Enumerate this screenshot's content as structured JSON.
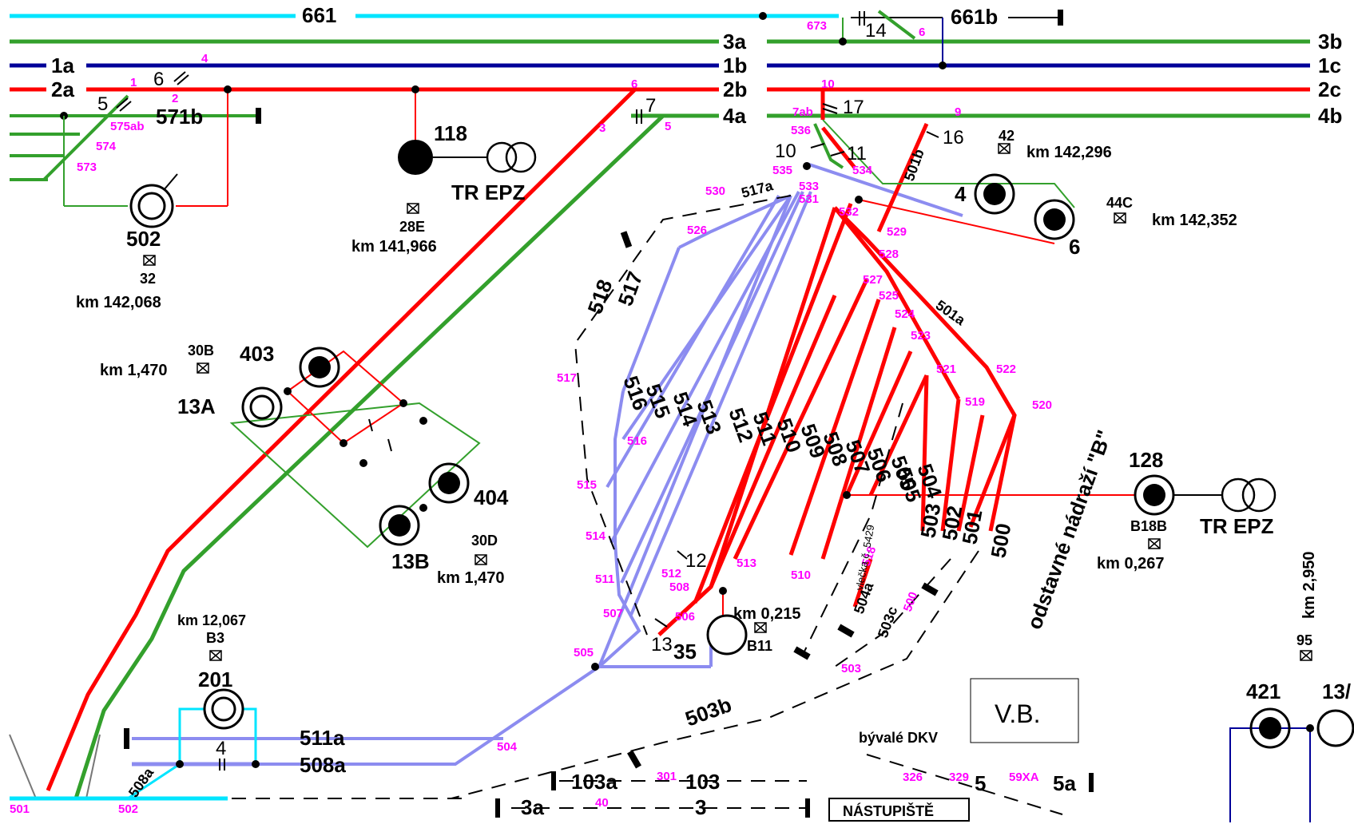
{
  "colors": {
    "red": "#ff0000",
    "green": "#33a02c",
    "blue": "#000099",
    "cyan": "#00e5ff",
    "lavender": "#8c8cf0",
    "magenta": "#ff00ff",
    "black": "#000000"
  },
  "tracks": {
    "t661": "661",
    "t661b": "661b",
    "t3a": "3a",
    "t3b": "3b",
    "t1a": "1a",
    "t1b": "1b",
    "t1c": "1c",
    "t2a": "2a",
    "t2b": "2b",
    "t2c": "2c",
    "t4a": "4a",
    "t4b": "4b",
    "t571b": "571b",
    "t511a": "511a",
    "t508a": "508a",
    "t103a": "103a",
    "t103": "103",
    "t3a_low": "3a",
    "t3": "3",
    "t5": "5",
    "t5a": "5a",
    "t503b": "503b",
    "t518": "518",
    "t517": "517",
    "t505": "505",
    "t505_vyt": "500"
  },
  "yard_tracks": [
    "516",
    "515",
    "514",
    "513",
    "512",
    "511",
    "510",
    "509",
    "508",
    "507",
    "506",
    "505",
    "504",
    "503",
    "502",
    "501",
    "500"
  ],
  "switch_numbers": {
    "s14": "14",
    "s6": "6",
    "s5": "5",
    "s7": "7",
    "s17": "17",
    "s10": "10",
    "s11": "11",
    "s16": "16",
    "s12": "12",
    "s13": "13",
    "s4": "4"
  },
  "point_labels": {
    "m673": "673",
    "m6s": "6",
    "m4": "4",
    "m1": "1",
    "m2": "2",
    "m575ab": "575ab",
    "m574": "574",
    "m573": "573",
    "m6": "6",
    "m3": "3",
    "m5": "5",
    "m10": "10",
    "m7ab": "7ab",
    "m9": "9",
    "m536": "536",
    "m535": "535",
    "m534": "534",
    "m533": "533",
    "m531": "531",
    "m530": "530",
    "m501b": "501b",
    "m517a": "517a",
    "m532": "532",
    "m529": "529",
    "m528": "528",
    "m527": "527",
    "m526": "526",
    "m525": "525",
    "m524": "524",
    "m523": "523",
    "m501a": "501a",
    "m521": "521",
    "m522": "522",
    "m519": "519",
    "m520": "520",
    "m517": "517",
    "m516": "516",
    "m515": "515",
    "m514": "514",
    "m511": "511",
    "m507": "507",
    "m505": "505",
    "m504": "504",
    "m512": "512",
    "m508": "508",
    "m506": "506",
    "m513": "513",
    "m510": "510",
    "m518": "518",
    "m504a": "504a",
    "m503c": "503c",
    "m500": "500",
    "m503": "503",
    "m501": "501",
    "m502": "502",
    "m508a": "508a",
    "m301": "301",
    "m40": "40",
    "m326": "326",
    "m329": "329",
    "m59xa": "59XA"
  },
  "equipment": {
    "e118": "118",
    "e502": "502",
    "e32": "32",
    "e28e": "28E",
    "e42": "42",
    "e44c": "44C",
    "e4": "4",
    "e6": "6",
    "e30b": "30B",
    "e403": "403",
    "e13a": "13A",
    "e404": "404",
    "e13b": "13B",
    "e30d": "30D",
    "e128": "128",
    "e b18b": "B18B",
    "e35": "35",
    "e201": "201",
    "eb3": "B3",
    "eb11": "B11",
    "e95": "95",
    "e421": "421",
    "e13a2": "13/",
    "tr1": "TR EPZ",
    "tr2": "TR EPZ"
  },
  "km": {
    "k1": "km 141,966",
    "k2": "km 142,068",
    "k3": "km 142,296",
    "k4": "km 142,352",
    "k5": "km 1,470",
    "k6": "km 1,470",
    "k7": "km 0,267",
    "k8": "km 0,215",
    "k9": "km 12,067",
    "k10": "km 2,950"
  },
  "notes": {
    "odstavne": "odstavné nádraží \"B\"",
    "vb": "V.B.",
    "bdkv": "bývalé DKV",
    "nastupiste": "NÁSTUPIŠTĚ",
    "vlecka": "vlečka č. 5429"
  }
}
